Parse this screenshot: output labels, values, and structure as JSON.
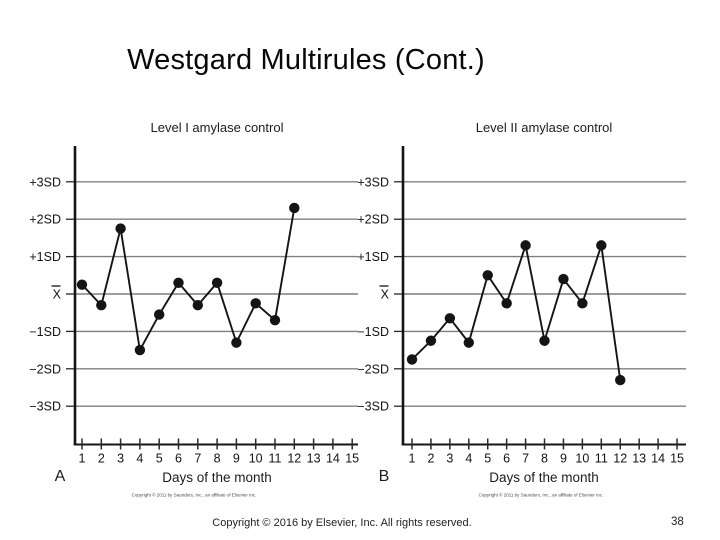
{
  "slide": {
    "title": "Westgard Multirules (Cont.)",
    "footer": "Copyright © 2016 by Elsevier, Inc. All rights reserved.",
    "page_number": "38"
  },
  "palette": {
    "ink": "#141414",
    "grid": "#7f7f7f",
    "tick": "#2a2a2a"
  },
  "chart_data": [
    {
      "type": "line",
      "panel": "A",
      "title": "Level I amylase control",
      "xlabel": "Days of the month",
      "ylabel": "",
      "credit": "Copyright © 2011 by Saunders, Inc., an affiliate of Elsevier Inc.",
      "days": [
        1,
        2,
        3,
        4,
        5,
        6,
        7,
        8,
        9,
        10,
        11,
        12
      ],
      "values_sd": [
        0.25,
        -0.3,
        1.75,
        -1.5,
        -0.55,
        0.3,
        -0.3,
        0.3,
        -1.3,
        -0.25,
        -0.7,
        2.3
      ],
      "x_ticks": [
        "1",
        "2",
        "3",
        "4",
        "5",
        "6",
        "7",
        "8",
        "9",
        "10",
        "11",
        "12",
        "13",
        "14",
        "15"
      ],
      "y_ticks": [
        {
          "label": "+3SD",
          "value": 3
        },
        {
          "label": "+2SD",
          "value": 2
        },
        {
          "label": "+1SD",
          "value": 1
        },
        {
          "label": "X̄",
          "value": 0,
          "overbar": true
        },
        {
          "label": "−1SD",
          "value": -1
        },
        {
          "label": "−2SD",
          "value": -2
        },
        {
          "label": "−3SD",
          "value": -3
        }
      ],
      "ylim": [
        -4,
        4
      ],
      "layout": {
        "gridlines": "horizontal",
        "legend": false,
        "marker": "filled-circle"
      }
    },
    {
      "type": "line",
      "panel": "B",
      "title": "Level II amylase control",
      "xlabel": "Days of the month",
      "ylabel": "",
      "credit": "Copyright © 2011 by Saunders, Inc., an affiliate of Elsevier Inc.",
      "days": [
        1,
        2,
        3,
        4,
        5,
        6,
        7,
        8,
        9,
        10,
        11,
        12
      ],
      "values_sd": [
        -1.75,
        -1.25,
        -0.65,
        -1.3,
        0.5,
        -0.25,
        1.3,
        -1.25,
        0.4,
        -0.25,
        1.3,
        -2.3
      ],
      "x_ticks": [
        "1",
        "2",
        "3",
        "4",
        "5",
        "6",
        "7",
        "8",
        "9",
        "10",
        "11",
        "12",
        "13",
        "14",
        "15"
      ],
      "y_ticks": [
        {
          "label": "+3SD",
          "value": 3
        },
        {
          "label": "+2SD",
          "value": 2
        },
        {
          "label": "+1SD",
          "value": 1
        },
        {
          "label": "X̄",
          "value": 0,
          "overbar": true
        },
        {
          "label": "−1SD",
          "value": -1
        },
        {
          "label": "−2SD",
          "value": -2
        },
        {
          "label": "−3SD",
          "value": -3
        }
      ],
      "ylim": [
        -4,
        4
      ],
      "layout": {
        "gridlines": "horizontal",
        "legend": false,
        "marker": "filled-circle"
      }
    }
  ]
}
